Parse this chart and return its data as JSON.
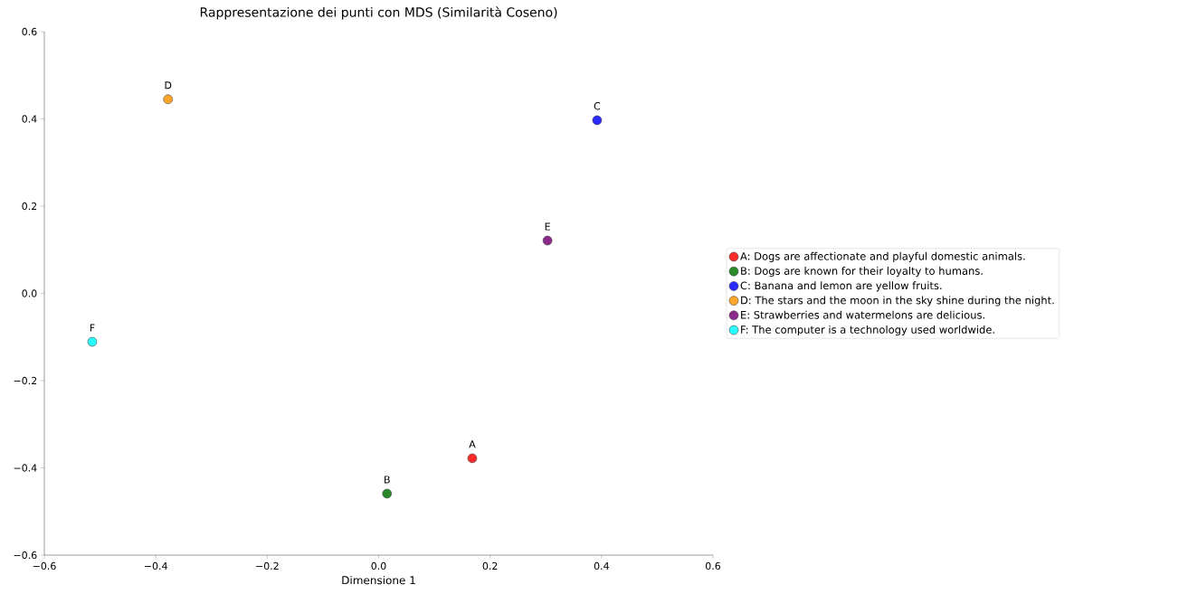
{
  "chart_data": {
    "type": "scatter",
    "title": "Rappresentazione dei punti con MDS (Similarità Coseno)",
    "xlabel": "Dimensione 1",
    "xlim": [
      -0.6,
      0.6
    ],
    "ylim": [
      -0.6,
      0.6
    ],
    "xticks": [
      {
        "value": -0.6,
        "label": "−0.6"
      },
      {
        "value": -0.4,
        "label": "−0.4"
      },
      {
        "value": -0.2,
        "label": "−0.2"
      },
      {
        "value": 0,
        "label": "0.0"
      },
      {
        "value": 0.2,
        "label": "0.2"
      },
      {
        "value": 0.4,
        "label": "0.4"
      },
      {
        "value": 0.6,
        "label": "0.6"
      }
    ],
    "yticks": [
      {
        "value": -0.6,
        "label": "−0.6"
      },
      {
        "value": -0.4,
        "label": "−0.4"
      },
      {
        "value": -0.2,
        "label": "−0.2"
      },
      {
        "value": 0,
        "label": "0.0"
      },
      {
        "value": 0.2,
        "label": "0.2"
      },
      {
        "value": 0.4,
        "label": "0.4"
      },
      {
        "value": 0.6,
        "label": "0.6"
      }
    ],
    "series": [
      {
        "name": "A: Dogs are affectionate and playful domestic animals.",
        "color": "#ff2a2a",
        "x": [
          0.168
        ],
        "values": [
          -0.378
        ]
      },
      {
        "name": "B: Dogs are known for their loyalty to humans.",
        "color": "#2a8a2a",
        "x": [
          0.015
        ],
        "values": [
          -0.459
        ]
      },
      {
        "name": "C: Banana and lemon are yellow fruits.",
        "color": "#2a2aff",
        "x": [
          0.392
        ],
        "values": [
          0.397
        ]
      },
      {
        "name": "D: The stars and the moon in the sky shine during the night.",
        "color": "#ffa52a",
        "x": [
          -0.378
        ],
        "values": [
          0.445
        ]
      },
      {
        "name": "E: Strawberries and watermelons are delicious.",
        "color": "#8a2a8a",
        "x": [
          0.303
        ],
        "values": [
          0.121
        ]
      },
      {
        "name": "F: The computer is a technology used worldwide.",
        "color": "#2affff",
        "x": [
          -0.514
        ],
        "values": [
          -0.111
        ]
      }
    ],
    "annotations": [
      {
        "text": "A",
        "x": 0.168,
        "y": -0.378
      },
      {
        "text": "B",
        "x": 0.015,
        "y": -0.459
      },
      {
        "text": "C",
        "x": 0.392,
        "y": 0.397
      },
      {
        "text": "D",
        "x": -0.378,
        "y": 0.445
      },
      {
        "text": "E",
        "x": 0.303,
        "y": 0.121
      },
      {
        "text": "F",
        "x": -0.514,
        "y": -0.111
      }
    ],
    "legend": "right",
    "marker": "circle",
    "grid": false
  }
}
